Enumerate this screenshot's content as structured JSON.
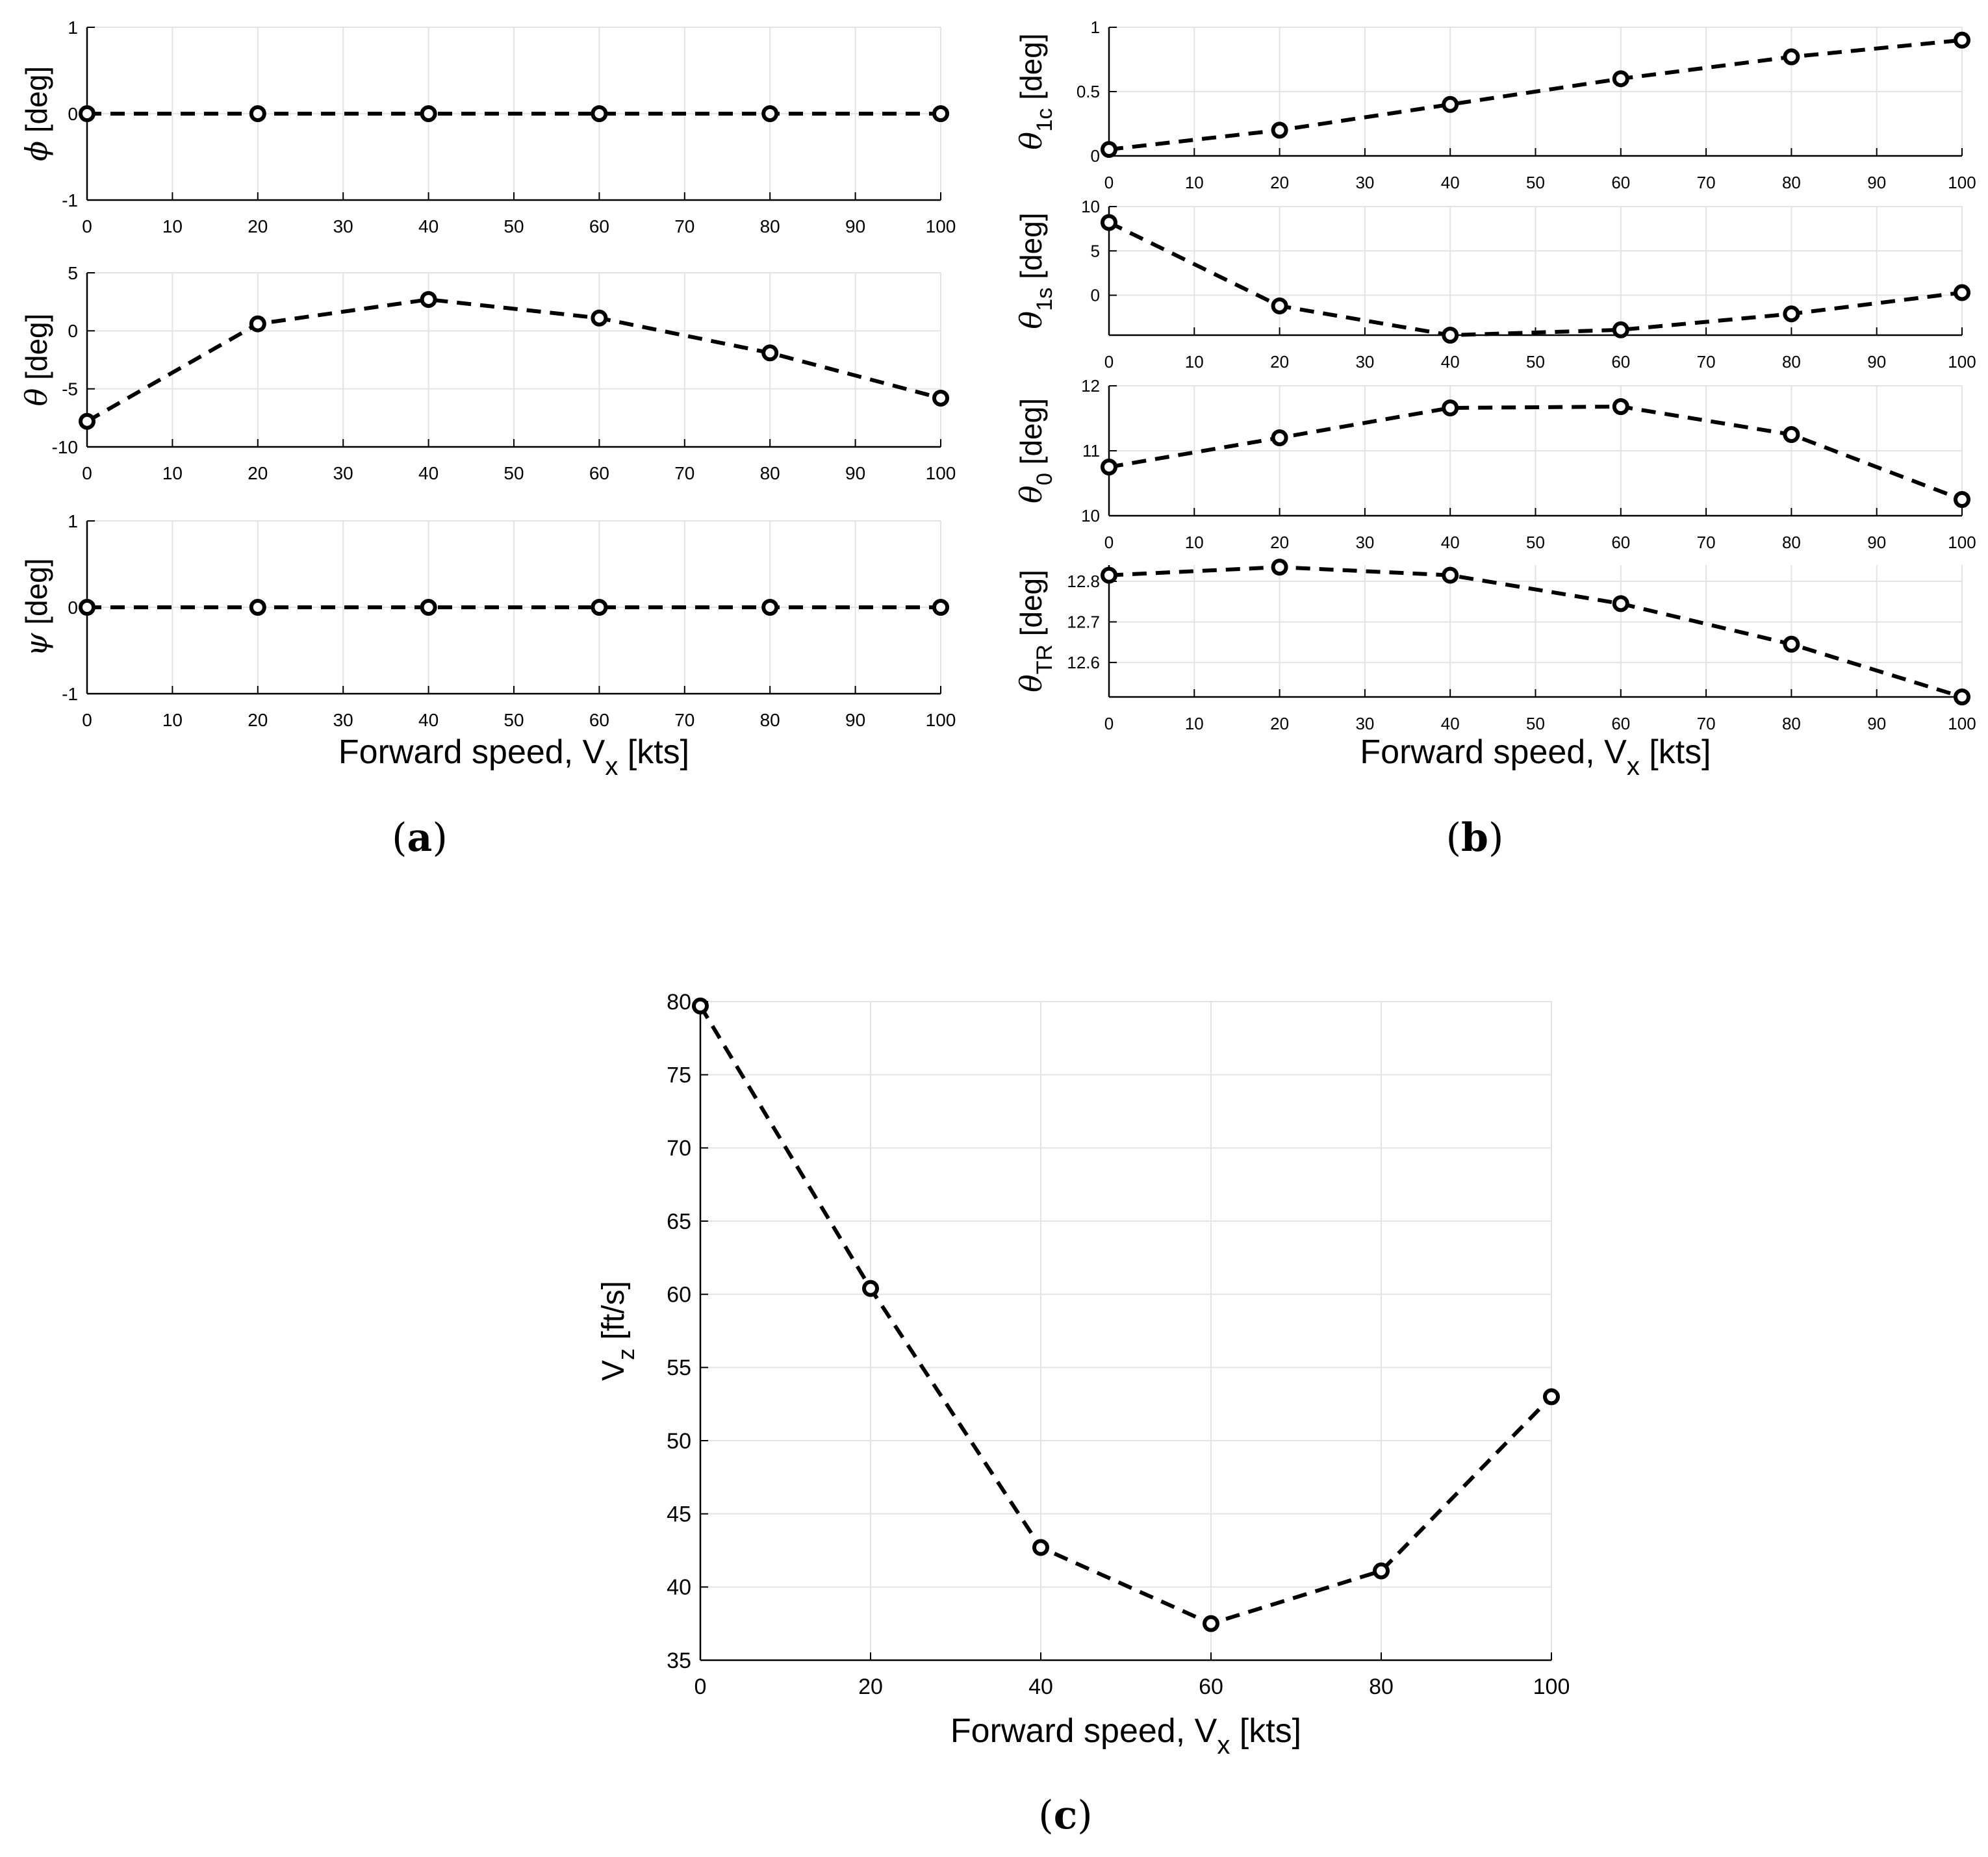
{
  "chart_data": [
    {
      "type": "line",
      "id": "a1",
      "panel": "a",
      "ylabel": {
        "symbol": "ϕ",
        "sub": "",
        "unit": "[deg]"
      },
      "x": [
        0,
        20,
        40,
        60,
        80,
        100
      ],
      "values": [
        0,
        0,
        0,
        0,
        0,
        0
      ],
      "xlim": [
        0,
        100
      ],
      "ylim": [
        -1,
        1
      ],
      "xticks": [
        "0",
        "10",
        "20",
        "30",
        "40",
        "50",
        "60",
        "70",
        "80",
        "90",
        "100"
      ],
      "yticks": [
        "-1",
        "0",
        "1"
      ],
      "xlabel": "",
      "grid": true
    },
    {
      "type": "line",
      "id": "a2",
      "panel": "a",
      "ylabel": {
        "symbol": "θ",
        "sub": "",
        "unit": "[deg]"
      },
      "x": [
        0,
        20,
        40,
        60,
        80,
        100
      ],
      "values": [
        -7.8,
        0.6,
        2.7,
        1.1,
        -1.9,
        -5.8
      ],
      "xlim": [
        0,
        100
      ],
      "ylim": [
        -10,
        5
      ],
      "xticks": [
        "0",
        "10",
        "20",
        "30",
        "40",
        "50",
        "60",
        "70",
        "80",
        "90",
        "100"
      ],
      "yticks": [
        "-10",
        "-5",
        "0",
        "5"
      ],
      "xlabel": "",
      "grid": true
    },
    {
      "type": "line",
      "id": "a3",
      "panel": "a",
      "ylabel": {
        "symbol": "ψ",
        "sub": "",
        "unit": "[deg]"
      },
      "x": [
        0,
        20,
        40,
        60,
        80,
        100
      ],
      "values": [
        0,
        0,
        0,
        0,
        0,
        0
      ],
      "xlim": [
        0,
        100
      ],
      "ylim": [
        -1,
        1
      ],
      "xticks": [
        "0",
        "10",
        "20",
        "30",
        "40",
        "50",
        "60",
        "70",
        "80",
        "90",
        "100"
      ],
      "yticks": [
        "-1",
        "0",
        "1"
      ],
      "xlabel": {
        "main": "Forward speed, V",
        "sub": "x",
        "unit": " [kts]"
      },
      "grid": true
    },
    {
      "type": "line",
      "id": "b1",
      "panel": "b",
      "ylabel": {
        "symbol": "θ",
        "sub": "1c",
        "unit": " [deg]"
      },
      "x": [
        0,
        20,
        40,
        60,
        80,
        100
      ],
      "values": [
        0.05,
        0.2,
        0.4,
        0.6,
        0.77,
        0.9
      ],
      "xlim": [
        0,
        100
      ],
      "ylim": [
        0,
        1
      ],
      "xticks": [
        "0",
        "10",
        "20",
        "30",
        "40",
        "50",
        "60",
        "70",
        "80",
        "90",
        "100"
      ],
      "yticks": [
        "0",
        "0.5",
        "1"
      ],
      "xlabel": "",
      "grid": true
    },
    {
      "type": "line",
      "id": "b2",
      "panel": "b",
      "ylabel": {
        "symbol": "θ",
        "sub": "1s",
        "unit": " [deg]"
      },
      "x": [
        0,
        20,
        40,
        60,
        80,
        100
      ],
      "values": [
        8.2,
        -1.2,
        -4.5,
        -3.9,
        -2.1,
        0.3
      ],
      "xlim": [
        0,
        100
      ],
      "ylim": [
        -4.5,
        10
      ],
      "xticks": [
        "0",
        "10",
        "20",
        "30",
        "40",
        "50",
        "60",
        "70",
        "80",
        "90",
        "100"
      ],
      "yticks": [
        "0",
        "5",
        "10"
      ],
      "xlabel": "",
      "grid": true
    },
    {
      "type": "line",
      "id": "b3",
      "panel": "b",
      "ylabel": {
        "symbol": "θ",
        "sub": "0",
        "unit": " [deg]"
      },
      "x": [
        0,
        20,
        40,
        60,
        80,
        100
      ],
      "values": [
        10.75,
        11.2,
        11.66,
        11.68,
        11.25,
        10.25
      ],
      "xlim": [
        0,
        100
      ],
      "ylim": [
        10,
        12
      ],
      "xticks": [
        "0",
        "10",
        "20",
        "30",
        "40",
        "50",
        "60",
        "70",
        "80",
        "90",
        "100"
      ],
      "yticks": [
        "10",
        "11",
        "12"
      ],
      "xlabel": "",
      "grid": true
    },
    {
      "type": "line",
      "id": "b4",
      "panel": "b",
      "ylabel": {
        "symbol": "θ",
        "sub": "TR",
        "unit": " [deg]"
      },
      "x": [
        0,
        20,
        40,
        60,
        80,
        100
      ],
      "values": [
        12.815,
        12.835,
        12.815,
        12.745,
        12.645,
        12.515
      ],
      "xlim": [
        0,
        100
      ],
      "ylim": [
        12.515,
        12.84
      ],
      "xticks": [
        "0",
        "10",
        "20",
        "30",
        "40",
        "50",
        "60",
        "70",
        "80",
        "90",
        "100"
      ],
      "yticks": [
        "12.6",
        "12.7",
        "12.8"
      ],
      "xlabel": {
        "main": "Forward speed, V",
        "sub": "x",
        "unit": " [kts]"
      },
      "grid": true
    },
    {
      "type": "line",
      "id": "c1",
      "panel": "c",
      "ylabel": {
        "symbol": "V",
        "sub": "z",
        "unit": " [ft/s]",
        "italic": false
      },
      "x": [
        0,
        20,
        40,
        60,
        80,
        100
      ],
      "values": [
        79.7,
        60.4,
        42.7,
        37.5,
        41.1,
        53.0
      ],
      "xlim": [
        0,
        100
      ],
      "ylim": [
        35,
        80
      ],
      "xticks": [
        "0",
        "20",
        "40",
        "60",
        "80",
        "100"
      ],
      "yticks": [
        "35",
        "40",
        "45",
        "50",
        "55",
        "60",
        "65",
        "70",
        "75",
        "80"
      ],
      "xlabel": {
        "main": "Forward speed, V",
        "sub": "x",
        "unit": " [kts]"
      },
      "grid": true
    }
  ],
  "captions": {
    "a": "a",
    "b": "b",
    "c": "c"
  }
}
